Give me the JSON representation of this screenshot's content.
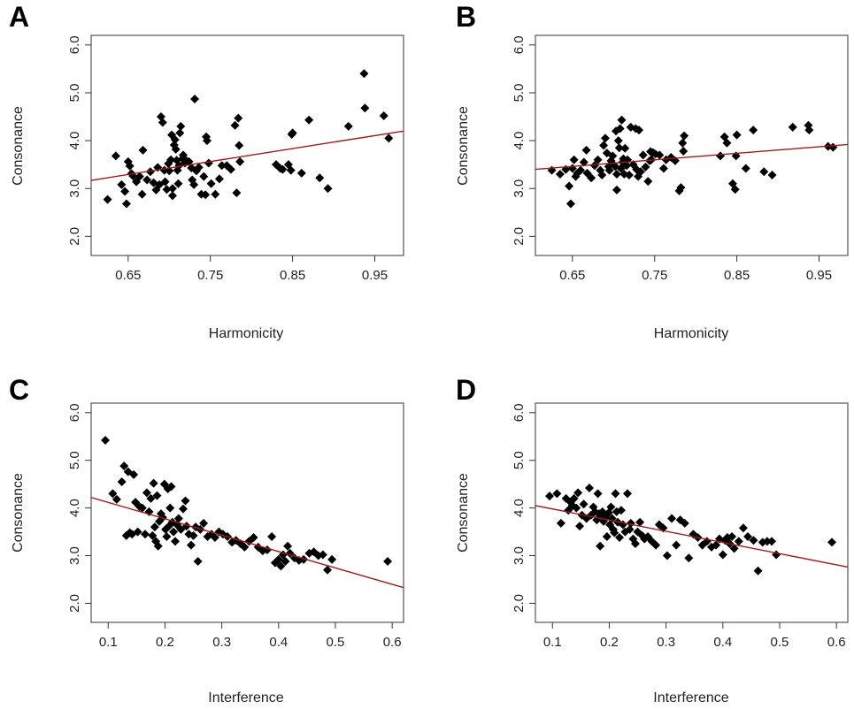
{
  "chart_data": [
    {
      "panel": "A",
      "type": "scatter",
      "xlabel": "Harmonicity",
      "ylabel": "Consonance",
      "xlim": [
        0.605,
        0.985
      ],
      "ylim": [
        1.6,
        6.2
      ],
      "xticks": [
        "0.65",
        "0.75",
        "0.85",
        "0.95"
      ],
      "yticks": [
        "2.0",
        "3.0",
        "4.0",
        "5.0",
        "6.0"
      ],
      "regression": {
        "from": [
          0.605,
          3.17
        ],
        "to": [
          0.985,
          4.2
        ],
        "color": "#a01a1a"
      },
      "points": [
        [
          0.625,
          2.77
        ],
        [
          0.635,
          3.68
        ],
        [
          0.642,
          3.08
        ],
        [
          0.646,
          2.94
        ],
        [
          0.648,
          2.68
        ],
        [
          0.65,
          3.56
        ],
        [
          0.652,
          3.47
        ],
        [
          0.654,
          3.31
        ],
        [
          0.656,
          3.26
        ],
        [
          0.66,
          3.14
        ],
        [
          0.664,
          3.25
        ],
        [
          0.667,
          2.88
        ],
        [
          0.668,
          3.8
        ],
        [
          0.673,
          3.18
        ],
        [
          0.677,
          3.35
        ],
        [
          0.681,
          3.12
        ],
        [
          0.684,
          2.97
        ],
        [
          0.686,
          3.44
        ],
        [
          0.688,
          3.08
        ],
        [
          0.69,
          4.5
        ],
        [
          0.692,
          4.38
        ],
        [
          0.694,
          3.38
        ],
        [
          0.695,
          3.14
        ],
        [
          0.697,
          2.98
        ],
        [
          0.699,
          3.52
        ],
        [
          0.7,
          3.37
        ],
        [
          0.702,
          3.6
        ],
        [
          0.703,
          4.12
        ],
        [
          0.704,
          3.0
        ],
        [
          0.704,
          2.85
        ],
        [
          0.706,
          3.91
        ],
        [
          0.707,
          4.02
        ],
        [
          0.708,
          3.82
        ],
        [
          0.709,
          3.59
        ],
        [
          0.71,
          3.38
        ],
        [
          0.711,
          3.1
        ],
        [
          0.712,
          3.48
        ],
        [
          0.713,
          4.16
        ],
        [
          0.714,
          4.3
        ],
        [
          0.716,
          3.62
        ],
        [
          0.717,
          3.7
        ],
        [
          0.719,
          3.53
        ],
        [
          0.721,
          3.58
        ],
        [
          0.724,
          3.56
        ],
        [
          0.727,
          3.43
        ],
        [
          0.728,
          3.18
        ],
        [
          0.73,
          3.08
        ],
        [
          0.731,
          4.87
        ],
        [
          0.733,
          3.37
        ],
        [
          0.736,
          3.44
        ],
        [
          0.739,
          2.88
        ],
        [
          0.742,
          3.25
        ],
        [
          0.744,
          2.87
        ],
        [
          0.745,
          4.08
        ],
        [
          0.746,
          4.0
        ],
        [
          0.748,
          3.53
        ],
        [
          0.751,
          3.1
        ],
        [
          0.756,
          2.88
        ],
        [
          0.761,
          3.2
        ],
        [
          0.764,
          3.48
        ],
        [
          0.77,
          3.48
        ],
        [
          0.775,
          3.4
        ],
        [
          0.78,
          4.32
        ],
        [
          0.782,
          2.91
        ],
        [
          0.784,
          4.47
        ],
        [
          0.785,
          3.9
        ],
        [
          0.786,
          3.56
        ],
        [
          0.83,
          3.5
        ],
        [
          0.835,
          3.42
        ],
        [
          0.838,
          3.4
        ],
        [
          0.845,
          3.5
        ],
        [
          0.848,
          3.38
        ],
        [
          0.849,
          4.13
        ],
        [
          0.85,
          4.16
        ],
        [
          0.861,
          3.32
        ],
        [
          0.87,
          4.43
        ],
        [
          0.883,
          3.22
        ],
        [
          0.893,
          3.0
        ],
        [
          0.918,
          4.3
        ],
        [
          0.937,
          5.4
        ],
        [
          0.938,
          4.68
        ],
        [
          0.961,
          4.52
        ],
        [
          0.967,
          4.05
        ]
      ]
    },
    {
      "panel": "B",
      "type": "scatter",
      "xlabel": "Harmonicity",
      "ylabel": "Consonance",
      "xlim": [
        0.605,
        0.985
      ],
      "ylim": [
        1.6,
        6.2
      ],
      "xticks": [
        "0.65",
        "0.75",
        "0.85",
        "0.95"
      ],
      "yticks": [
        "2.0",
        "3.0",
        "4.0",
        "5.0",
        "6.0"
      ],
      "regression": {
        "from": [
          0.605,
          3.4
        ],
        "to": [
          0.985,
          3.92
        ],
        "color": "#a01a1a"
      },
      "points": [
        [
          0.625,
          3.38
        ],
        [
          0.635,
          3.3
        ],
        [
          0.642,
          3.4
        ],
        [
          0.646,
          3.05
        ],
        [
          0.648,
          2.68
        ],
        [
          0.65,
          3.42
        ],
        [
          0.652,
          3.6
        ],
        [
          0.654,
          3.25
        ],
        [
          0.656,
          3.32
        ],
        [
          0.66,
          3.38
        ],
        [
          0.664,
          3.55
        ],
        [
          0.667,
          3.8
        ],
        [
          0.668,
          3.32
        ],
        [
          0.673,
          3.22
        ],
        [
          0.677,
          3.48
        ],
        [
          0.681,
          3.6
        ],
        [
          0.684,
          3.38
        ],
        [
          0.686,
          3.28
        ],
        [
          0.688,
          3.9
        ],
        [
          0.69,
          4.05
        ],
        [
          0.692,
          3.74
        ],
        [
          0.694,
          3.46
        ],
        [
          0.695,
          3.38
        ],
        [
          0.697,
          3.58
        ],
        [
          0.699,
          3.68
        ],
        [
          0.7,
          3.5
        ],
        [
          0.702,
          3.46
        ],
        [
          0.703,
          4.2
        ],
        [
          0.704,
          3.3
        ],
        [
          0.704,
          2.97
        ],
        [
          0.706,
          4.0
        ],
        [
          0.707,
          3.85
        ],
        [
          0.708,
          4.25
        ],
        [
          0.709,
          3.42
        ],
        [
          0.71,
          4.43
        ],
        [
          0.711,
          3.55
        ],
        [
          0.712,
          3.62
        ],
        [
          0.713,
          3.3
        ],
        [
          0.714,
          3.84
        ],
        [
          0.716,
          3.48
        ],
        [
          0.717,
          3.6
        ],
        [
          0.719,
          3.28
        ],
        [
          0.721,
          4.28
        ],
        [
          0.724,
          3.5
        ],
        [
          0.727,
          4.25
        ],
        [
          0.728,
          3.4
        ],
        [
          0.73,
          3.25
        ],
        [
          0.731,
          4.22
        ],
        [
          0.733,
          3.35
        ],
        [
          0.736,
          3.7
        ],
        [
          0.739,
          3.45
        ],
        [
          0.742,
          3.15
        ],
        [
          0.744,
          3.58
        ],
        [
          0.745,
          3.77
        ],
        [
          0.746,
          3.6
        ],
        [
          0.748,
          3.75
        ],
        [
          0.751,
          3.72
        ],
        [
          0.756,
          3.7
        ],
        [
          0.761,
          3.42
        ],
        [
          0.764,
          3.6
        ],
        [
          0.77,
          3.65
        ],
        [
          0.775,
          3.58
        ],
        [
          0.78,
          2.95
        ],
        [
          0.782,
          3.02
        ],
        [
          0.784,
          3.95
        ],
        [
          0.785,
          3.78
        ],
        [
          0.786,
          4.1
        ],
        [
          0.83,
          3.68
        ],
        [
          0.835,
          4.08
        ],
        [
          0.838,
          3.95
        ],
        [
          0.845,
          3.1
        ],
        [
          0.848,
          2.98
        ],
        [
          0.849,
          3.68
        ],
        [
          0.85,
          4.12
        ],
        [
          0.861,
          3.42
        ],
        [
          0.87,
          4.22
        ],
        [
          0.883,
          3.35
        ],
        [
          0.893,
          3.28
        ],
        [
          0.918,
          4.28
        ],
        [
          0.937,
          4.32
        ],
        [
          0.938,
          4.22
        ],
        [
          0.961,
          3.88
        ],
        [
          0.967,
          3.86
        ]
      ]
    },
    {
      "panel": "C",
      "type": "scatter",
      "xlabel": "Interference",
      "ylabel": "Consonance",
      "xlim": [
        0.07,
        0.62
      ],
      "ylim": [
        1.6,
        6.2
      ],
      "xticks": [
        "0.1",
        "0.2",
        "0.3",
        "0.4",
        "0.5",
        "0.6"
      ],
      "yticks": [
        "2.0",
        "3.0",
        "4.0",
        "5.0",
        "6.0"
      ],
      "regression": {
        "from": [
          0.07,
          4.22
        ],
        "to": [
          0.62,
          2.33
        ],
        "color": "#a01a1a"
      },
      "points": [
        [
          0.095,
          5.42
        ],
        [
          0.108,
          4.3
        ],
        [
          0.115,
          4.18
        ],
        [
          0.124,
          4.55
        ],
        [
          0.128,
          4.88
        ],
        [
          0.132,
          3.42
        ],
        [
          0.135,
          4.76
        ],
        [
          0.138,
          3.48
        ],
        [
          0.142,
          3.45
        ],
        [
          0.145,
          4.7
        ],
        [
          0.148,
          4.12
        ],
        [
          0.152,
          3.5
        ],
        [
          0.155,
          4.03
        ],
        [
          0.16,
          4.0
        ],
        [
          0.165,
          3.45
        ],
        [
          0.168,
          4.32
        ],
        [
          0.172,
          3.92
        ],
        [
          0.175,
          4.2
        ],
        [
          0.178,
          3.42
        ],
        [
          0.18,
          4.52
        ],
        [
          0.182,
          3.6
        ],
        [
          0.184,
          3.3
        ],
        [
          0.186,
          4.26
        ],
        [
          0.188,
          3.2
        ],
        [
          0.19,
          3.72
        ],
        [
          0.193,
          3.88
        ],
        [
          0.196,
          3.8
        ],
        [
          0.199,
          4.5
        ],
        [
          0.201,
          3.55
        ],
        [
          0.203,
          3.4
        ],
        [
          0.205,
          4.4
        ],
        [
          0.207,
          3.62
        ],
        [
          0.209,
          4.0
        ],
        [
          0.211,
          4.45
        ],
        [
          0.213,
          3.7
        ],
        [
          0.215,
          3.5
        ],
        [
          0.218,
          3.3
        ],
        [
          0.221,
          3.65
        ],
        [
          0.224,
          3.78
        ],
        [
          0.228,
          3.55
        ],
        [
          0.232,
          3.98
        ],
        [
          0.236,
          4.15
        ],
        [
          0.238,
          3.62
        ],
        [
          0.242,
          3.45
        ],
        [
          0.246,
          3.22
        ],
        [
          0.25,
          3.42
        ],
        [
          0.254,
          3.6
        ],
        [
          0.258,
          2.88
        ],
        [
          0.262,
          3.55
        ],
        [
          0.268,
          3.68
        ],
        [
          0.275,
          3.4
        ],
        [
          0.282,
          3.45
        ],
        [
          0.288,
          3.38
        ],
        [
          0.295,
          3.5
        ],
        [
          0.302,
          3.45
        ],
        [
          0.31,
          3.4
        ],
        [
          0.318,
          3.28
        ],
        [
          0.325,
          3.32
        ],
        [
          0.333,
          3.25
        ],
        [
          0.34,
          3.18
        ],
        [
          0.348,
          3.3
        ],
        [
          0.356,
          3.38
        ],
        [
          0.364,
          3.18
        ],
        [
          0.372,
          3.1
        ],
        [
          0.38,
          3.12
        ],
        [
          0.388,
          3.4
        ],
        [
          0.394,
          2.85
        ],
        [
          0.4,
          2.92
        ],
        [
          0.404,
          2.78
        ],
        [
          0.408,
          3.02
        ],
        [
          0.412,
          2.88
        ],
        [
          0.416,
          3.2
        ],
        [
          0.42,
          3.05
        ],
        [
          0.428,
          2.95
        ],
        [
          0.436,
          2.9
        ],
        [
          0.444,
          2.92
        ],
        [
          0.454,
          3.05
        ],
        [
          0.462,
          3.08
        ],
        [
          0.47,
          3.0
        ],
        [
          0.478,
          3.02
        ],
        [
          0.486,
          2.7
        ],
        [
          0.494,
          2.92
        ],
        [
          0.592,
          2.88
        ]
      ]
    },
    {
      "panel": "D",
      "type": "scatter",
      "xlabel": "Interference",
      "ylabel": "Consonance",
      "xlim": [
        0.07,
        0.62
      ],
      "ylim": [
        1.6,
        6.2
      ],
      "xticks": [
        "0.1",
        "0.2",
        "0.3",
        "0.4",
        "0.5",
        "0.6"
      ],
      "yticks": [
        "2.0",
        "3.0",
        "4.0",
        "5.0",
        "6.0"
      ],
      "regression": {
        "from": [
          0.07,
          4.05
        ],
        "to": [
          0.62,
          2.76
        ],
        "color": "#a01a1a"
      },
      "points": [
        [
          0.095,
          4.25
        ],
        [
          0.108,
          4.3
        ],
        [
          0.115,
          3.68
        ],
        [
          0.124,
          4.2
        ],
        [
          0.128,
          3.95
        ],
        [
          0.132,
          4.12
        ],
        [
          0.135,
          4.05
        ],
        [
          0.138,
          4.2
        ],
        [
          0.142,
          4.0
        ],
        [
          0.145,
          4.32
        ],
        [
          0.148,
          3.62
        ],
        [
          0.152,
          3.85
        ],
        [
          0.155,
          4.08
        ],
        [
          0.16,
          3.78
        ],
        [
          0.165,
          4.42
        ],
        [
          0.168,
          3.85
        ],
        [
          0.172,
          4.02
        ],
        [
          0.175,
          3.92
        ],
        [
          0.178,
          3.75
        ],
        [
          0.18,
          4.3
        ],
        [
          0.182,
          3.88
        ],
        [
          0.184,
          3.2
        ],
        [
          0.186,
          3.85
        ],
        [
          0.188,
          3.92
        ],
        [
          0.19,
          3.72
        ],
        [
          0.193,
          3.8
        ],
        [
          0.196,
          3.4
        ],
        [
          0.199,
          3.9
        ],
        [
          0.201,
          3.65
        ],
        [
          0.203,
          4.02
        ],
        [
          0.205,
          3.78
        ],
        [
          0.207,
          3.55
        ],
        [
          0.209,
          3.48
        ],
        [
          0.211,
          4.3
        ],
        [
          0.213,
          3.92
        ],
        [
          0.215,
          3.7
        ],
        [
          0.218,
          3.38
        ],
        [
          0.221,
          3.95
        ],
        [
          0.224,
          3.65
        ],
        [
          0.228,
          3.5
        ],
        [
          0.232,
          4.3
        ],
        [
          0.236,
          3.55
        ],
        [
          0.238,
          3.68
        ],
        [
          0.242,
          3.35
        ],
        [
          0.246,
          3.25
        ],
        [
          0.25,
          3.5
        ],
        [
          0.254,
          3.7
        ],
        [
          0.258,
          3.42
        ],
        [
          0.262,
          3.35
        ],
        [
          0.268,
          3.4
        ],
        [
          0.275,
          3.3
        ],
        [
          0.282,
          3.22
        ],
        [
          0.288,
          3.65
        ],
        [
          0.295,
          3.58
        ],
        [
          0.302,
          3.0
        ],
        [
          0.31,
          3.78
        ],
        [
          0.318,
          3.22
        ],
        [
          0.325,
          3.75
        ],
        [
          0.333,
          3.68
        ],
        [
          0.34,
          2.95
        ],
        [
          0.348,
          3.45
        ],
        [
          0.356,
          3.38
        ],
        [
          0.364,
          3.22
        ],
        [
          0.372,
          3.3
        ],
        [
          0.38,
          3.18
        ],
        [
          0.388,
          3.22
        ],
        [
          0.394,
          3.35
        ],
        [
          0.4,
          3.02
        ],
        [
          0.404,
          3.32
        ],
        [
          0.408,
          3.38
        ],
        [
          0.412,
          3.25
        ],
        [
          0.416,
          3.4
        ],
        [
          0.42,
          3.15
        ],
        [
          0.428,
          3.3
        ],
        [
          0.436,
          3.58
        ],
        [
          0.444,
          3.4
        ],
        [
          0.454,
          3.32
        ],
        [
          0.462,
          2.68
        ],
        [
          0.47,
          3.28
        ],
        [
          0.478,
          3.3
        ],
        [
          0.486,
          3.3
        ],
        [
          0.494,
          3.02
        ],
        [
          0.592,
          3.28
        ]
      ]
    }
  ]
}
